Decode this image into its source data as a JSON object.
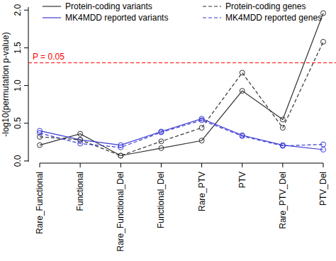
{
  "chart_data": {
    "type": "line",
    "y_label": "-log10(permutation p-value)",
    "categories": [
      "Rare_Functional",
      "Functional",
      "Rare_Functional_Del",
      "Functional_Del",
      "Rare_PTV",
      "PTV",
      "Rare_PTV_Del",
      "PTV_Del"
    ],
    "series": [
      {
        "name": "Protein-coding variants",
        "color": "#333333",
        "line_style": "solid",
        "marker": "circle",
        "values": [
          0.21,
          0.36,
          0.07,
          0.17,
          0.27,
          0.93,
          0.55,
          1.96
        ]
      },
      {
        "name": "MK4MDD reported variants",
        "color": "#3b3bd6",
        "line_style": "solid",
        "marker": "circle",
        "values": [
          0.4,
          0.28,
          0.21,
          0.39,
          0.56,
          0.34,
          0.21,
          0.15
        ]
      },
      {
        "name": "Protein-coding genes",
        "color": "#333333",
        "line_style": "dashed",
        "marker": "circle",
        "values": [
          0.32,
          0.28,
          0.07,
          0.26,
          0.44,
          1.17,
          0.44,
          1.58
        ]
      },
      {
        "name": "MK4MDD reported genes",
        "color": "#3b3bd6",
        "line_style": "dashed",
        "marker": "circle",
        "values": [
          0.37,
          0.23,
          0.18,
          0.38,
          0.54,
          0.33,
          0.2,
          0.22
        ]
      }
    ],
    "reference_line": {
      "value": 1.301,
      "label": "P = 0.05",
      "color": "#ff0000",
      "line_style": "dashed"
    },
    "ylim": [
      -0.01,
      2.04
    ],
    "yticks": [
      {
        "value": 0,
        "label": "0.0"
      },
      0.5,
      {
        "value": 1,
        "label": "1.0"
      },
      1.5,
      {
        "value": 2,
        "label": "2.0"
      }
    ],
    "legend": "top",
    "grid": false
  }
}
